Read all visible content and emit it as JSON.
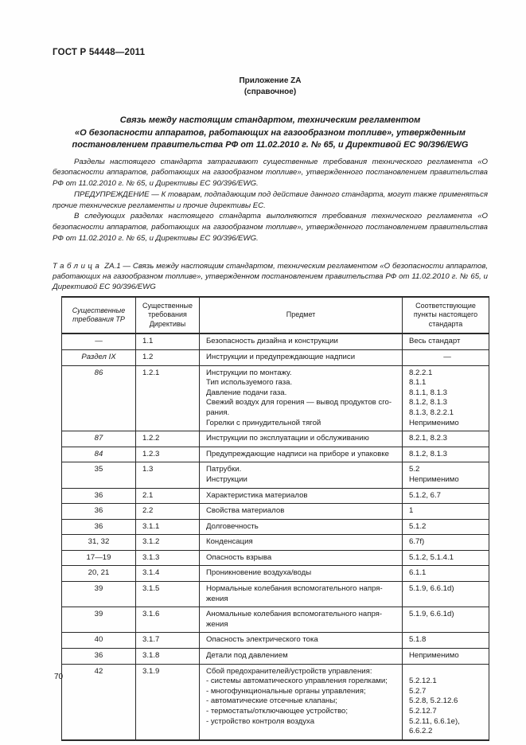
{
  "header": {
    "doc_number": "ГОСТ Р 54448—2011",
    "page_number": "70"
  },
  "appendix": {
    "label": "Приложение ZA",
    "note": "(справочное)"
  },
  "title": {
    "lines": [
      "Связь между настоящим стандартом, техническим регламентом",
      "«О безопасности аппаратов, работающих на газообразном топливе», утвержденным",
      "постановлением правительства РФ от 11.02.2010 г. № 65, и Директивой ЕС 90/396/EWG"
    ]
  },
  "paragraphs": [
    "Разделы настоящего стандарта затрагивают существенные требования технического регламента «О безопасности аппаратов, работающих на газообразном топливе», утвержденного постановлением правительства РФ от 11.02.2010 г. № 65, и Директивы ЕС 90/396/EWG.",
    "ПРЕДУПРЕЖДЕНИЕ — К товарам, подпадающим под действие данного стандарта, могут также применяться прочие технические регламенты и прочие директивы ЕС.",
    "В следующих разделах настоящего стандарта выполняются требования технического регламента «О безопасности аппаратов, работающих на газообразном топливе», утвержденного постановлением правительства РФ от 11.02.2010 г. № 65, и Директивы ЕС 90/396/EWG."
  ],
  "table": {
    "caption_label": "Таблица",
    "caption_rest": "ZA.1 — Связь между настоящим стандартом, техническим регламентом «О безопасности аппаратов, работающих на газообразном топливе», утвержденном постановлением правительства РФ от 11.02.2010 г. № 65, и Директивой ЕС 90/396/EWG",
    "headers": [
      "Существенные требования ТР",
      "Существенные требования Директивы",
      "Предмет",
      "Соответствующие пункты настоящего стандарта"
    ],
    "rows": [
      {
        "tr": "—",
        "italic": false,
        "dir": "1.1",
        "subject": [
          "Безопасность дизайна и конструкции"
        ],
        "clauses": [
          "Весь стандарт"
        ]
      },
      {
        "tr": "Раздел IX",
        "italic": true,
        "dir": "1.2",
        "subject": [
          "Инструкции и предупреждающие надписи"
        ],
        "clauses": [
          "—"
        ]
      },
      {
        "tr": "86",
        "italic": true,
        "dir": "1.2.1",
        "subject": [
          "Инструкции по монтажу.",
          "Тип используемого газа.",
          "Давление подачи газа.",
          "Свежий воздух для горения — вывод продуктов сго-",
          "рания.",
          "Горелки с принудительной тягой"
        ],
        "clauses": [
          "8.2.2.1",
          "8.1.1",
          "8.1.1, 8.1.3",
          "8.1.2, 8.1.3",
          "8.1.3, 8.2.2.1",
          "Неприменимо"
        ]
      },
      {
        "tr": "87",
        "italic": true,
        "dir": "1.2.2",
        "subject": [
          "Инструкции по эксплуатации и обслуживанию"
        ],
        "clauses": [
          "8.2.1, 8.2.3"
        ]
      },
      {
        "tr": "84",
        "italic": true,
        "dir": "1.2.3",
        "subject": [
          "Предупреждающие надписи на приборе и упаковке"
        ],
        "clauses": [
          "8.1.2, 8.1.3"
        ]
      },
      {
        "tr": "35",
        "italic": false,
        "dir": "1.3",
        "subject": [
          "Патрубки.",
          "Инструкции"
        ],
        "clauses": [
          "5.2",
          "Неприменимо"
        ]
      },
      {
        "tr": "36",
        "italic": false,
        "dir": "2.1",
        "subject": [
          "Характеристика материалов"
        ],
        "clauses": [
          "5.1.2, 6.7"
        ]
      },
      {
        "tr": "36",
        "italic": false,
        "dir": "2.2",
        "subject": [
          "Свойства материалов"
        ],
        "clauses": [
          "1"
        ]
      },
      {
        "tr": "36",
        "italic": false,
        "dir": "3.1.1",
        "subject": [
          "Долговечность"
        ],
        "clauses": [
          "5.1.2"
        ]
      },
      {
        "tr": "31, 32",
        "italic": false,
        "dir": "3.1.2",
        "subject": [
          "Конденсация"
        ],
        "clauses": [
          "6.7f)"
        ]
      },
      {
        "tr": "17—19",
        "italic": false,
        "dir": "3.1.3",
        "subject": [
          "Опасность взрыва"
        ],
        "clauses": [
          "5.1.2, 5.1.4.1"
        ]
      },
      {
        "tr": "20, 21",
        "italic": false,
        "dir": "3.1.4",
        "subject": [
          "Проникновение воздуха/воды"
        ],
        "clauses": [
          "6.1.1"
        ]
      },
      {
        "tr": "39",
        "italic": false,
        "dir": "3.1.5",
        "subject": [
          "Нормальные колебания вспомогательного напря-",
          "жения"
        ],
        "clauses": [
          "5.1.9, 6.6.1d)"
        ]
      },
      {
        "tr": "39",
        "italic": false,
        "dir": "3.1.6",
        "subject": [
          "Аномальные колебания вспомогательного напря-",
          "жения"
        ],
        "clauses": [
          "5.1.9, 6.6.1d)"
        ]
      },
      {
        "tr": "40",
        "italic": false,
        "dir": "3.1.7",
        "subject": [
          "Опасность электрического тока"
        ],
        "clauses": [
          "5.1.8"
        ]
      },
      {
        "tr": "36",
        "italic": false,
        "dir": "3.1.8",
        "subject": [
          "Детали под давлением"
        ],
        "clauses": [
          "Неприменимо"
        ]
      },
      {
        "tr": "42",
        "italic": false,
        "dir": "3.1.9",
        "subject": [
          "Сбой предохранителей/устройств управления:",
          "- системы автоматического управления горелками;",
          "- многофункциональные органы управления;",
          "- автоматические отсечные клапаны;",
          "- термостаты/отключающее устройство;",
          "- устройство контроля воздуха"
        ],
        "clauses": [
          "",
          "5.2.12.1",
          "5.2.7",
          "5.2.8, 5.2.12.6",
          "5.2.12.7",
          "5.2.11, 6.6.1e),",
          "6.6.2.2"
        ]
      }
    ]
  }
}
